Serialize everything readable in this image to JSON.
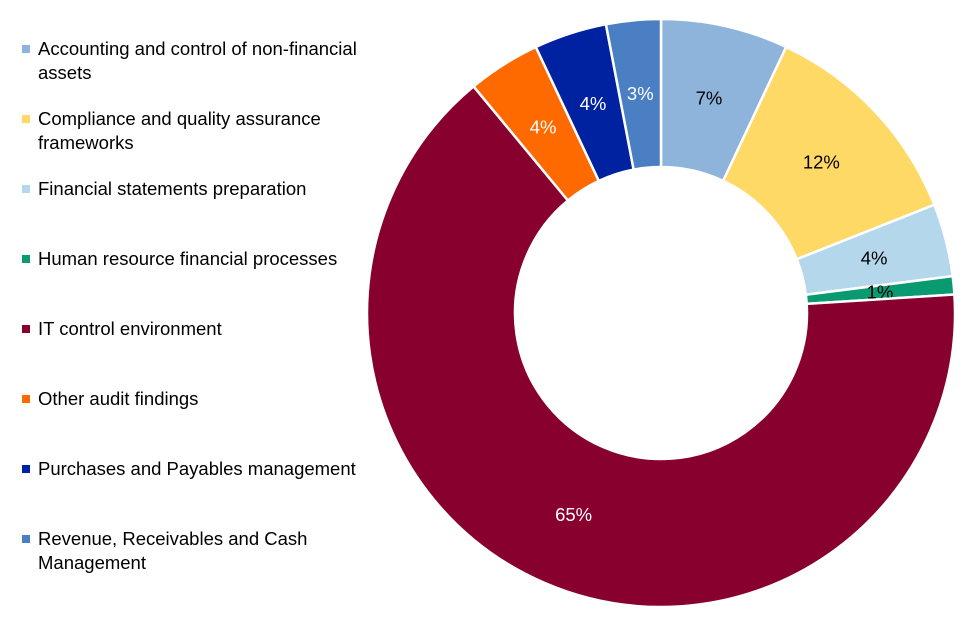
{
  "chart_data": {
    "type": "pie",
    "donut": true,
    "title": "",
    "legend_position": "left",
    "slices": [
      {
        "label": "Accounting and control of non-financial assets",
        "value": 7,
        "display": "7%",
        "color": "#8eb4dc",
        "label_color": "#000000"
      },
      {
        "label": "Compliance and quality assurance frameworks",
        "value": 12,
        "display": "12%",
        "color": "#ffd966",
        "label_color": "#000000"
      },
      {
        "label": "Financial statements preparation",
        "value": 4,
        "display": "4%",
        "color": "#b4d7ec",
        "label_color": "#000000"
      },
      {
        "label": "Human resource financial processes",
        "value": 1,
        "display": "1%",
        "color": "#0a9a72",
        "label_color": "#000000"
      },
      {
        "label": "IT control environment",
        "value": 65,
        "display": "65%",
        "color": "#88002e",
        "label_color": "#ffffff"
      },
      {
        "label": "Other audit findings",
        "value": 4,
        "display": "4%",
        "color": "#ff6a00",
        "label_color": "#ffffff"
      },
      {
        "label": "Purchases and Payables management",
        "value": 4,
        "display": "4%",
        "color": "#0021a0",
        "label_color": "#ffffff"
      },
      {
        "label": "Revenue, Receivables and Cash Management",
        "value": 3,
        "display": "3%",
        "color": "#4a7fc4",
        "label_color": "#ffffff"
      }
    ]
  }
}
